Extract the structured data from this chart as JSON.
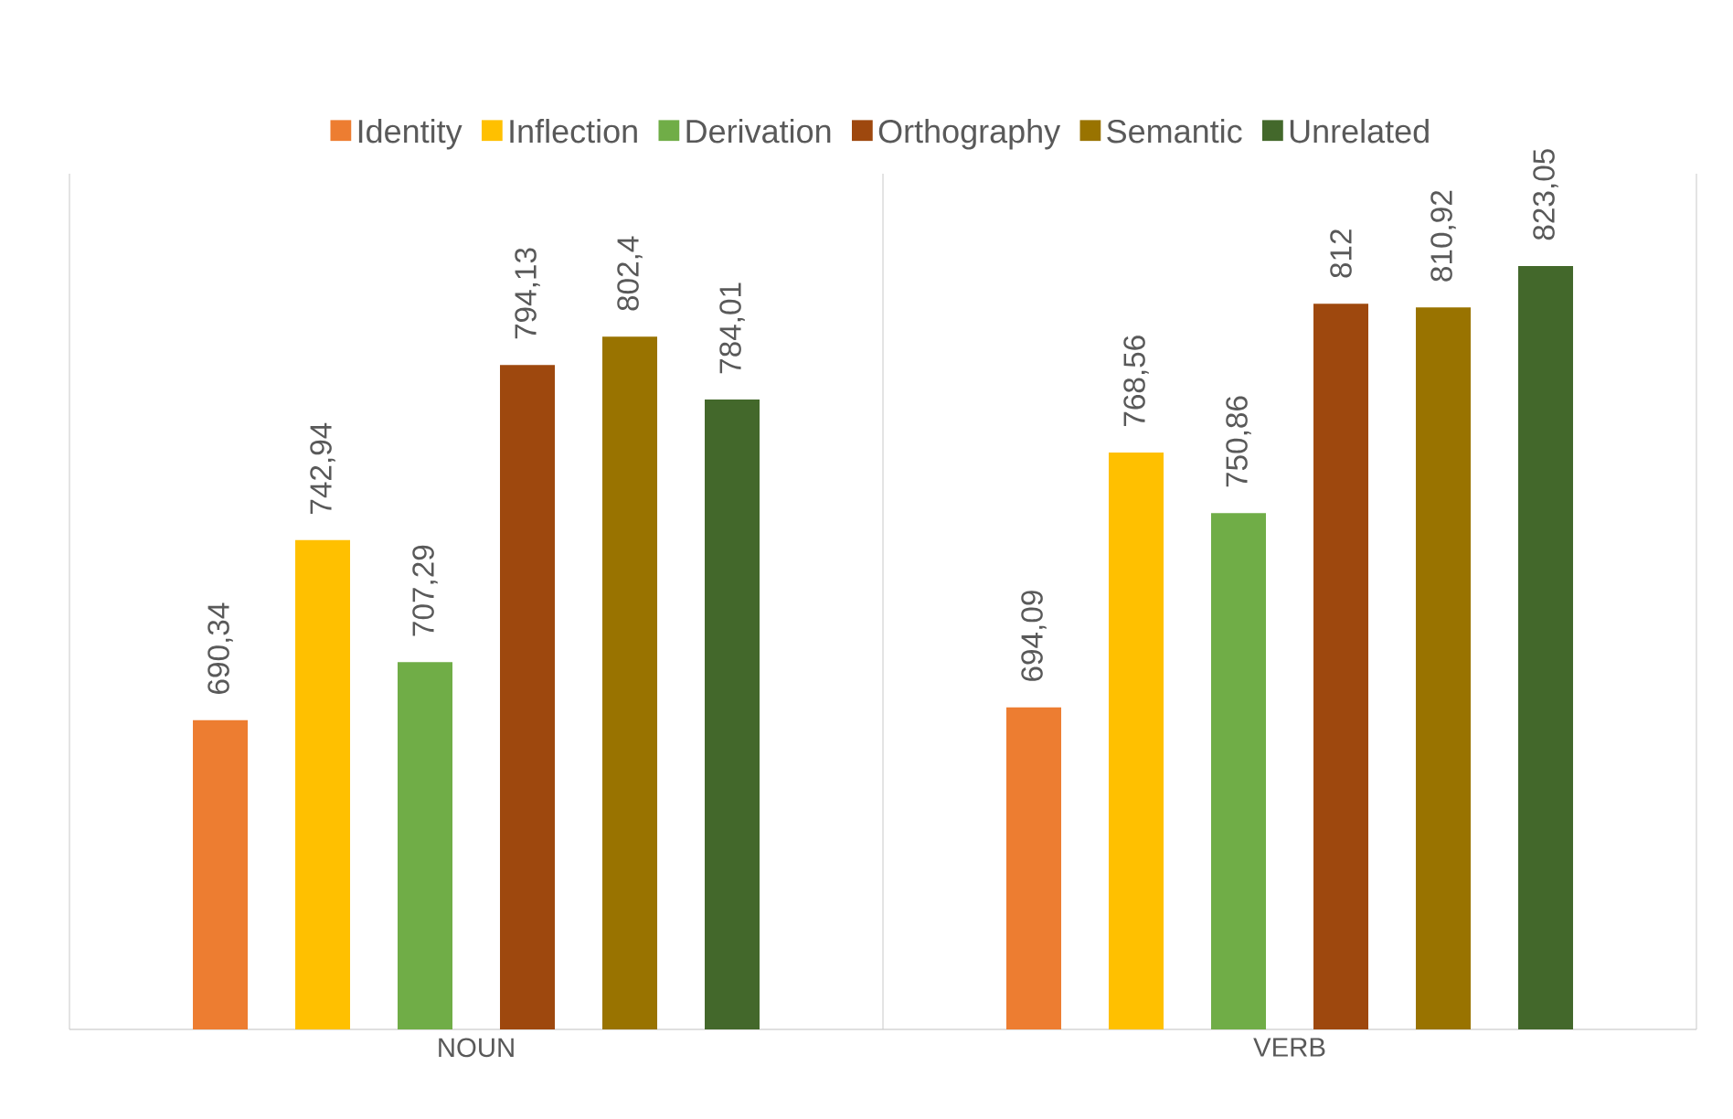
{
  "chart_data": {
    "type": "bar",
    "categories": [
      "NOUN",
      "VERB"
    ],
    "series": [
      {
        "name": "Identity",
        "color": "#ed7d31",
        "values": [
          690.34,
          694.09
        ],
        "value_labels": [
          "690,34",
          "694,09"
        ]
      },
      {
        "name": "Inflection",
        "color": "#ffc000",
        "values": [
          742.94,
          768.56
        ],
        "value_labels": [
          "742,94",
          "768,56"
        ]
      },
      {
        "name": "Derivation",
        "color": "#70ad47",
        "values": [
          707.29,
          750.86
        ],
        "value_labels": [
          "707,29",
          "750,86"
        ]
      },
      {
        "name": "Orthography",
        "color": "#9e480e",
        "values": [
          794.13,
          812
        ],
        "value_labels": [
          "794,13",
          "812"
        ]
      },
      {
        "name": "Semantic",
        "color": "#997300",
        "values": [
          802.4,
          810.92
        ],
        "value_labels": [
          "802,4",
          "810,92"
        ]
      },
      {
        "name": "Unrelated",
        "color": "#43682b",
        "values": [
          784.01,
          823.05
        ],
        "value_labels": [
          "784,01",
          "823,05"
        ]
      }
    ],
    "ylim": [
      600,
      850
    ],
    "tick_labels": "x",
    "legend": "top"
  }
}
